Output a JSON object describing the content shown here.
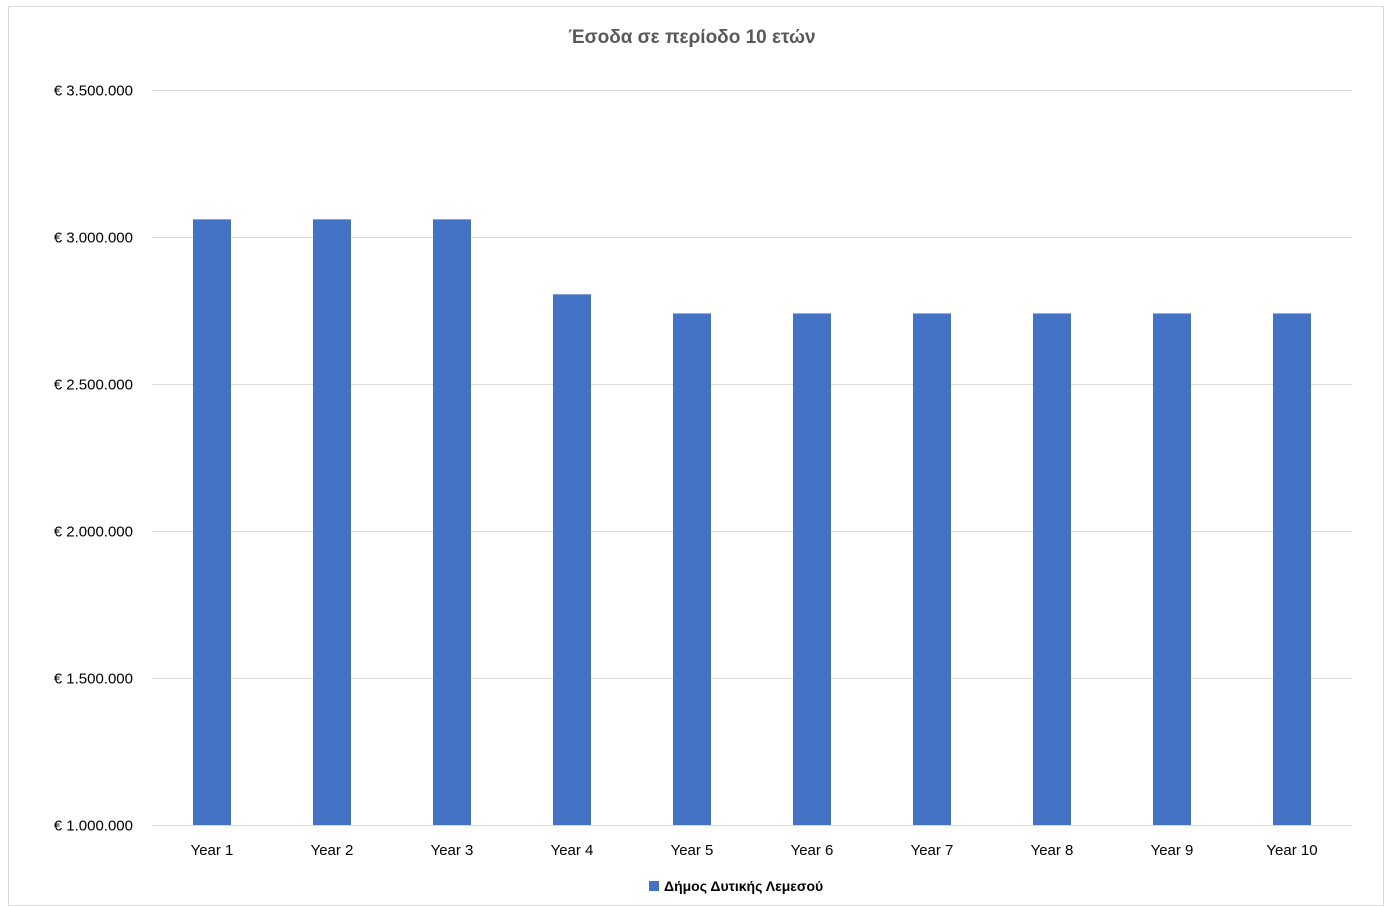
{
  "chart_data": {
    "type": "bar",
    "title": "Έσοδα σε περίοδο 10 ετών",
    "categories": [
      "Year 1",
      "Year 2",
      "Year 3",
      "Year 4",
      "Year 5",
      "Year 6",
      "Year 7",
      "Year 8",
      "Year 9",
      "Year 10"
    ],
    "series": [
      {
        "name": "Δήμος Δυτικής Λεμεσού",
        "color": "#4472c4",
        "values": [
          3060000,
          3060000,
          3060000,
          2805000,
          2740000,
          2740000,
          2740000,
          2740000,
          2740000,
          2740000
        ]
      }
    ],
    "ylim": [
      1000000,
      3500000
    ],
    "yticks": [
      1000000,
      1500000,
      2000000,
      2500000,
      3000000,
      3500000
    ],
    "ytick_labels": [
      "€ 1.000.000",
      "€ 1.500.000",
      "€ 2.000.000",
      "€ 2.500.000",
      "€ 3.000.000",
      "€ 3.500.000"
    ],
    "xlabel": "",
    "ylabel": "",
    "grid": true,
    "legend_position": "bottom"
  }
}
